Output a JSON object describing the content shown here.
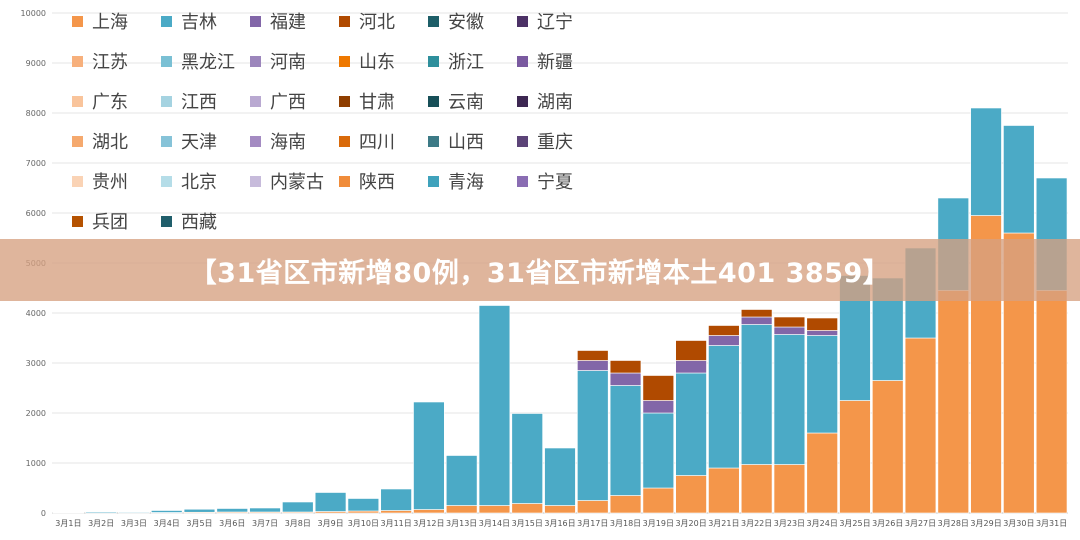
{
  "banner": {
    "headline": "【31省区市新增80例，31省区市新增本土401 3859】"
  },
  "chart_data": {
    "type": "bar",
    "stacked": true,
    "ylim": [
      0,
      10000
    ],
    "yticks": [
      "0",
      "1000",
      "2000",
      "3000",
      "4000",
      "5000",
      "6000",
      "7000",
      "8000",
      "9000",
      "10000"
    ],
    "categories": [
      "3月1日",
      "3月2日",
      "3月3日",
      "3月4日",
      "3月5日",
      "3月6日",
      "3月7日",
      "3月8日",
      "3月9日",
      "3月10日",
      "3月11日",
      "3月12日",
      "3月13日",
      "3月14日",
      "3月15日",
      "3月16日",
      "3月17日",
      "3月18日",
      "3月19日",
      "3月20日",
      "3月21日",
      "3月22日",
      "3月23日",
      "3月24日",
      "3月25日",
      "3月26日",
      "3月27日",
      "3月28日",
      "3月29日",
      "3月30日",
      "3月31日"
    ],
    "grid": true,
    "legend_position": "top-left",
    "series": [
      {
        "name": "上海",
        "color": "#F4964A",
        "values": [
          5,
          5,
          5,
          10,
          15,
          20,
          20,
          20,
          30,
          40,
          50,
          70,
          150,
          150,
          190,
          150,
          250,
          350,
          500,
          750,
          900,
          970,
          970,
          1600,
          2250,
          2650,
          3500,
          4450,
          5950,
          5600,
          4450
        ]
      },
      {
        "name": "吉林",
        "color": "#4BAAC6",
        "values": [
          10,
          20,
          15,
          40,
          60,
          70,
          80,
          200,
          380,
          250,
          430,
          2150,
          1000,
          4000,
          1800,
          1150,
          2600,
          2200,
          1500,
          2050,
          2450,
          2800,
          2600,
          1950,
          2500,
          2050,
          1800,
          1850,
          2150,
          2150,
          2250
        ]
      },
      {
        "name": "福建",
        "color": "#8266A8",
        "values": [
          0,
          0,
          0,
          0,
          0,
          0,
          0,
          0,
          0,
          0,
          0,
          0,
          0,
          0,
          0,
          0,
          200,
          250,
          250,
          250,
          200,
          150,
          150,
          100,
          0,
          0,
          0,
          0,
          0,
          0,
          0
        ]
      },
      {
        "name": "河北",
        "color": "#B04A00",
        "values": [
          0,
          0,
          0,
          0,
          0,
          0,
          0,
          0,
          0,
          0,
          0,
          0,
          0,
          0,
          0,
          0,
          200,
          250,
          500,
          400,
          200,
          150,
          200,
          250,
          0,
          0,
          0,
          0,
          0,
          0,
          0
        ]
      },
      {
        "name": "安徽",
        "color": "#1D5E68",
        "values": [
          0,
          0,
          0,
          0,
          0,
          0,
          0,
          0,
          0,
          0,
          0,
          0,
          0,
          0,
          0,
          0,
          0,
          0,
          0,
          0,
          0,
          0,
          0,
          0,
          0,
          0,
          0,
          0,
          0,
          0,
          0
        ]
      },
      {
        "name": "辽宁",
        "color": "#4C3166",
        "values": [
          0,
          0,
          0,
          0,
          0,
          0,
          0,
          0,
          0,
          0,
          0,
          0,
          0,
          0,
          0,
          0,
          0,
          0,
          0,
          0,
          0,
          0,
          0,
          0,
          0,
          0,
          0,
          0,
          0,
          0,
          0
        ]
      },
      {
        "name": "江苏",
        "color": "#F7B07C",
        "values": [
          0,
          0,
          0,
          0,
          0,
          0,
          0,
          0,
          0,
          0,
          0,
          0,
          0,
          0,
          0,
          0,
          0,
          0,
          0,
          0,
          0,
          0,
          0,
          0,
          0,
          0,
          0,
          0,
          0,
          0,
          0
        ]
      },
      {
        "name": "黑龙江",
        "color": "#7AC0D4",
        "values": [
          0,
          0,
          0,
          0,
          0,
          0,
          0,
          0,
          0,
          0,
          0,
          0,
          0,
          0,
          0,
          0,
          0,
          0,
          0,
          0,
          0,
          0,
          0,
          0,
          0,
          0,
          0,
          0,
          0,
          0,
          0
        ]
      },
      {
        "name": "河南",
        "color": "#9C86BC",
        "values": [
          0,
          0,
          0,
          0,
          0,
          0,
          0,
          0,
          0,
          0,
          0,
          0,
          0,
          0,
          0,
          0,
          0,
          0,
          0,
          0,
          0,
          0,
          0,
          0,
          0,
          0,
          0,
          0,
          0,
          0,
          0
        ]
      },
      {
        "name": "山东",
        "color": "#EE7800",
        "values": [
          0,
          0,
          0,
          0,
          0,
          0,
          0,
          0,
          0,
          0,
          0,
          0,
          0,
          0,
          0,
          0,
          0,
          0,
          0,
          0,
          0,
          0,
          0,
          0,
          0,
          0,
          0,
          0,
          0,
          0,
          0
        ]
      },
      {
        "name": "浙江",
        "color": "#2E8F9C",
        "values": [
          0,
          0,
          0,
          0,
          0,
          0,
          0,
          0,
          0,
          0,
          0,
          0,
          0,
          0,
          0,
          0,
          0,
          0,
          0,
          0,
          0,
          0,
          0,
          0,
          0,
          0,
          0,
          0,
          0,
          0,
          0
        ]
      },
      {
        "name": "新疆",
        "color": "#7A5AA0",
        "values": [
          0,
          0,
          0,
          0,
          0,
          0,
          0,
          0,
          0,
          0,
          0,
          0,
          0,
          0,
          0,
          0,
          0,
          0,
          0,
          0,
          0,
          0,
          0,
          0,
          0,
          0,
          0,
          0,
          0,
          0,
          0
        ]
      },
      {
        "name": "广东",
        "color": "#F9C49B",
        "values": [
          0,
          0,
          0,
          0,
          0,
          0,
          0,
          0,
          0,
          0,
          0,
          0,
          0,
          0,
          0,
          0,
          0,
          0,
          0,
          0,
          0,
          0,
          0,
          0,
          0,
          0,
          0,
          0,
          0,
          0,
          0
        ]
      },
      {
        "name": "江西",
        "color": "#A5D3E1",
        "values": [
          0,
          0,
          0,
          0,
          0,
          0,
          0,
          0,
          0,
          0,
          0,
          0,
          0,
          0,
          0,
          0,
          0,
          0,
          0,
          0,
          0,
          0,
          0,
          0,
          0,
          0,
          0,
          0,
          0,
          0,
          0
        ]
      },
      {
        "name": "广西",
        "color": "#B9A9D1",
        "values": [
          0,
          0,
          0,
          0,
          0,
          0,
          0,
          0,
          0,
          0,
          0,
          0,
          0,
          0,
          0,
          0,
          0,
          0,
          0,
          0,
          0,
          0,
          0,
          0,
          0,
          0,
          0,
          0,
          0,
          0,
          0
        ]
      },
      {
        "name": "甘肃",
        "color": "#8F3E00",
        "values": [
          0,
          0,
          0,
          0,
          0,
          0,
          0,
          0,
          0,
          0,
          0,
          0,
          0,
          0,
          0,
          0,
          0,
          0,
          0,
          0,
          0,
          0,
          0,
          0,
          0,
          0,
          0,
          0,
          0,
          0,
          0
        ]
      },
      {
        "name": "云南",
        "color": "#174F58",
        "values": [
          0,
          0,
          0,
          0,
          0,
          0,
          0,
          0,
          0,
          0,
          0,
          0,
          0,
          0,
          0,
          0,
          0,
          0,
          0,
          0,
          0,
          0,
          0,
          0,
          0,
          0,
          0,
          0,
          0,
          0,
          0
        ]
      },
      {
        "name": "湖南",
        "color": "#3D2752",
        "values": [
          0,
          0,
          0,
          0,
          0,
          0,
          0,
          0,
          0,
          0,
          0,
          0,
          0,
          0,
          0,
          0,
          0,
          0,
          0,
          0,
          0,
          0,
          0,
          0,
          0,
          0,
          0,
          0,
          0,
          0,
          0
        ]
      },
      {
        "name": "湖北",
        "color": "#F5A96E",
        "values": [
          0,
          0,
          0,
          0,
          0,
          0,
          0,
          0,
          0,
          0,
          0,
          0,
          0,
          0,
          0,
          0,
          0,
          0,
          0,
          0,
          0,
          0,
          0,
          0,
          0,
          0,
          0,
          0,
          0,
          0,
          0
        ]
      },
      {
        "name": "天津",
        "color": "#86C3D8",
        "values": [
          0,
          0,
          0,
          0,
          0,
          0,
          0,
          0,
          0,
          0,
          0,
          0,
          0,
          0,
          0,
          0,
          0,
          0,
          0,
          0,
          0,
          0,
          0,
          0,
          0,
          0,
          0,
          0,
          0,
          0,
          0
        ]
      },
      {
        "name": "海南",
        "color": "#A48BC2",
        "values": [
          0,
          0,
          0,
          0,
          0,
          0,
          0,
          0,
          0,
          0,
          0,
          0,
          0,
          0,
          0,
          0,
          0,
          0,
          0,
          0,
          0,
          0,
          0,
          0,
          0,
          0,
          0,
          0,
          0,
          0,
          0
        ]
      },
      {
        "name": "四川",
        "color": "#D96A0A",
        "values": [
          0,
          0,
          0,
          0,
          0,
          0,
          0,
          0,
          0,
          0,
          0,
          0,
          0,
          0,
          0,
          0,
          0,
          0,
          0,
          0,
          0,
          0,
          0,
          0,
          0,
          0,
          0,
          0,
          0,
          0,
          0
        ]
      },
      {
        "name": "山西",
        "color": "#3C7A86",
        "values": [
          0,
          0,
          0,
          0,
          0,
          0,
          0,
          0,
          0,
          0,
          0,
          0,
          0,
          0,
          0,
          0,
          0,
          0,
          0,
          0,
          0,
          0,
          0,
          0,
          0,
          0,
          0,
          0,
          0,
          0,
          0
        ]
      },
      {
        "name": "重庆",
        "color": "#5C4478",
        "values": [
          0,
          0,
          0,
          0,
          0,
          0,
          0,
          0,
          0,
          0,
          0,
          0,
          0,
          0,
          0,
          0,
          0,
          0,
          0,
          0,
          0,
          0,
          0,
          0,
          0,
          0,
          0,
          0,
          0,
          0,
          0
        ]
      },
      {
        "name": "贵州",
        "color": "#FAD3B5",
        "values": [
          0,
          0,
          0,
          0,
          0,
          0,
          0,
          0,
          0,
          0,
          0,
          0,
          0,
          0,
          0,
          0,
          0,
          0,
          0,
          0,
          0,
          0,
          0,
          0,
          0,
          0,
          0,
          0,
          0,
          0,
          0
        ]
      },
      {
        "name": "北京",
        "color": "#B5DDE8",
        "values": [
          0,
          0,
          0,
          0,
          0,
          0,
          0,
          0,
          0,
          0,
          0,
          0,
          0,
          0,
          0,
          0,
          0,
          0,
          0,
          0,
          0,
          0,
          0,
          0,
          0,
          0,
          0,
          0,
          0,
          0,
          0
        ]
      },
      {
        "name": "内蒙古",
        "color": "#C7BBDB",
        "values": [
          0,
          0,
          0,
          0,
          0,
          0,
          0,
          0,
          0,
          0,
          0,
          0,
          0,
          0,
          0,
          0,
          0,
          0,
          0,
          0,
          0,
          0,
          0,
          0,
          0,
          0,
          0,
          0,
          0,
          0,
          0
        ]
      },
      {
        "name": "陕西",
        "color": "#F08C3A",
        "values": [
          0,
          0,
          0,
          0,
          0,
          0,
          0,
          0,
          0,
          0,
          0,
          0,
          0,
          0,
          0,
          0,
          0,
          0,
          0,
          0,
          0,
          0,
          0,
          0,
          0,
          0,
          0,
          0,
          0,
          0,
          0
        ]
      },
      {
        "name": "青海",
        "color": "#3FA2BC",
        "values": [
          0,
          0,
          0,
          0,
          0,
          0,
          0,
          0,
          0,
          0,
          0,
          0,
          0,
          0,
          0,
          0,
          0,
          0,
          0,
          0,
          0,
          0,
          0,
          0,
          0,
          0,
          0,
          0,
          0,
          0,
          0
        ]
      },
      {
        "name": "宁夏",
        "color": "#8A6DB3",
        "values": [
          0,
          0,
          0,
          0,
          0,
          0,
          0,
          0,
          0,
          0,
          0,
          0,
          0,
          0,
          0,
          0,
          0,
          0,
          0,
          0,
          0,
          0,
          0,
          0,
          0,
          0,
          0,
          0,
          0,
          0,
          0
        ]
      },
      {
        "name": "兵团",
        "color": "#B55200",
        "values": [
          0,
          0,
          0,
          0,
          0,
          0,
          0,
          0,
          0,
          0,
          0,
          0,
          0,
          0,
          0,
          0,
          0,
          0,
          0,
          0,
          0,
          0,
          0,
          0,
          0,
          0,
          0,
          0,
          0,
          0,
          0
        ]
      },
      {
        "name": "西藏",
        "color": "#205E6B",
        "values": [
          0,
          0,
          0,
          0,
          0,
          0,
          0,
          0,
          0,
          0,
          0,
          0,
          0,
          0,
          0,
          0,
          0,
          0,
          0,
          0,
          0,
          0,
          0,
          0,
          0,
          0,
          0,
          0,
          0,
          0,
          0
        ]
      }
    ]
  }
}
